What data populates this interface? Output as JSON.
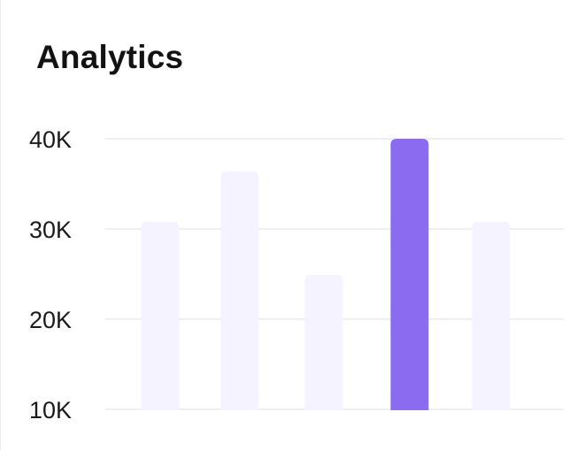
{
  "card": {
    "title": "Analytics"
  },
  "chart_data": {
    "type": "bar",
    "title": "Analytics",
    "xlabel": "",
    "ylabel": "",
    "categories": [
      "",
      "",
      "",
      "",
      ""
    ],
    "values": [
      30800,
      36400,
      24900,
      40000,
      30800
    ],
    "ylim": [
      10000,
      40000
    ],
    "yticks": [
      {
        "value": 40000,
        "label": "40K"
      },
      {
        "value": 30000,
        "label": "30K"
      },
      {
        "value": 20000,
        "label": "20K"
      },
      {
        "value": 10000,
        "label": "10K"
      }
    ],
    "highlight_index": 3,
    "grid": true,
    "colors": {
      "bar": "#f5f3ff",
      "bar_highlight": "#8a6cf0",
      "grid": "#efeff2"
    }
  }
}
